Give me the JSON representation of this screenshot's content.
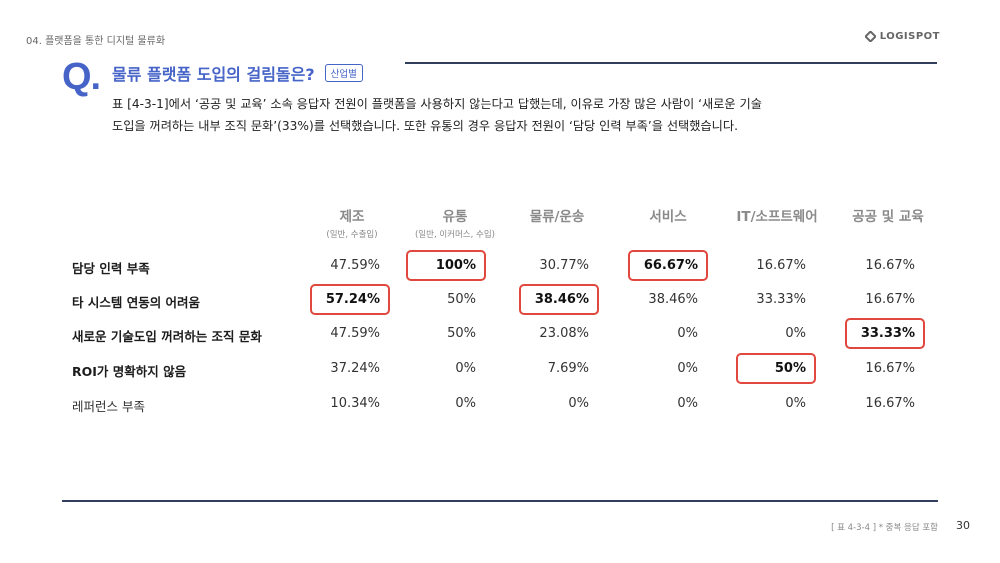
{
  "header": {
    "section": "04. 플랫폼을 통한 디지털 물류화",
    "logo_text": "LOGISPOT"
  },
  "question": {
    "mark": "Q.",
    "title": "물류 플랫폼 도입의 걸림돌은?",
    "badge": "산업별",
    "desc_line1": "표 [4-3-1]에서 ‘공공 및 교육’ 소속 응답자 전원이 플랫폼을 사용하지 않는다고 답했는데, 이유로 가장 많은 사람이 ‘새로운 기술",
    "desc_line2": "도입을 꺼려하는 내부 조직 문화’(33%)를 선택했습니다. 또한 유통의 경우 응답자 전원이 ‘담당 인력 부족’을 선택했습니다."
  },
  "table": {
    "columns": [
      {
        "name": "제조",
        "sub": "(일반, 수출입)"
      },
      {
        "name": "유통",
        "sub": "(일반, 이커머스, 수입)"
      },
      {
        "name": "물류/운송",
        "sub": ""
      },
      {
        "name": "서비스",
        "sub": ""
      },
      {
        "name": "IT/소프트웨어",
        "sub": ""
      },
      {
        "name": "공공 및 교육",
        "sub": ""
      }
    ],
    "rows": [
      {
        "label": "담당 인력 부족",
        "values": [
          "47.59%",
          "100%",
          "30.77%",
          "66.67%",
          "16.67%",
          "16.67%"
        ],
        "highlight": [
          1,
          3
        ]
      },
      {
        "label": "타 시스템 연동의 어려움",
        "values": [
          "57.24%",
          "50%",
          "38.46%",
          "38.46%",
          "33.33%",
          "16.67%"
        ],
        "highlight": [
          0,
          2
        ]
      },
      {
        "label": "새로운 기술도입 꺼려하는 조직 문화",
        "values": [
          "47.59%",
          "50%",
          "23.08%",
          "0%",
          "0%",
          "33.33%"
        ],
        "highlight": [
          5
        ]
      },
      {
        "label": "ROI가 명확하지 않음",
        "values": [
          "37.24%",
          "0%",
          "7.69%",
          "0%",
          "50%",
          "16.67%"
        ],
        "highlight": [
          4
        ]
      },
      {
        "label": "레퍼런스 부족",
        "values": [
          "10.34%",
          "0%",
          "0%",
          "0%",
          "0%",
          "16.67%"
        ],
        "highlight": []
      }
    ]
  },
  "footer": {
    "note": "[ 표 4-3-4 ] * 중복 응답 포함",
    "page": "30"
  },
  "colors": {
    "accent": "#4664c8",
    "highlight": "#e0483e",
    "rule": "#2f3f5c"
  }
}
